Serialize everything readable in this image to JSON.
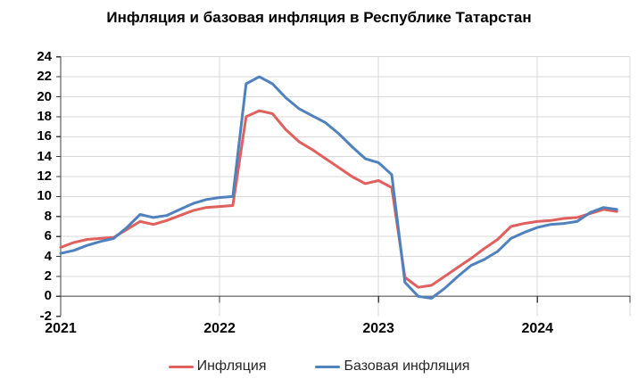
{
  "title": "Инфляция и базовая инфляция в Республике Татарстан",
  "colors": {
    "inflation": "#e0605d",
    "core_inflation": "#4f81bd",
    "gridline": "#d9d9d9",
    "zero_line": "#7f7f7f",
    "axis": "#3f3f3f",
    "text": "#000000"
  },
  "chart_data": {
    "type": "line",
    "title": "Инфляция и базовая инфляция в Республике Татарстан",
    "x_unit": "month",
    "x_start": "2021-01",
    "x_end": "2024-07",
    "xlabel": "",
    "ylabel": "",
    "ylim": [
      -2,
      24
    ],
    "y_tick_step": 2,
    "y_ticks": [
      24,
      22,
      20,
      18,
      16,
      14,
      12,
      10,
      8,
      6,
      4,
      2,
      0,
      -2
    ],
    "x_year_ticks": [
      {
        "label": "2021",
        "month_index": 0
      },
      {
        "label": "2022",
        "month_index": 12
      },
      {
        "label": "2023",
        "month_index": 24
      },
      {
        "label": "2024",
        "month_index": 36
      }
    ],
    "grid": "horizontal every 2 units (zero line darker) + vertical at year boundaries",
    "legend_position": "bottom",
    "series": [
      {
        "name": "Инфляция",
        "color": "#e0605d",
        "values": [
          4.9,
          5.4,
          5.7,
          5.8,
          5.9,
          6.7,
          7.5,
          7.2,
          7.6,
          8.1,
          8.6,
          8.9,
          9.0,
          9.1,
          18.0,
          18.6,
          18.3,
          16.7,
          15.5,
          14.7,
          13.8,
          12.9,
          12.0,
          11.3,
          11.6,
          10.9,
          1.9,
          0.9,
          1.1,
          2.0,
          2.9,
          3.8,
          4.8,
          5.7,
          7.0,
          7.3,
          7.5,
          7.6,
          7.8,
          7.9,
          8.3,
          8.7,
          8.5
        ]
      },
      {
        "name": "Базовая инфляция",
        "color": "#4f81bd",
        "values": [
          4.3,
          4.6,
          5.1,
          5.5,
          5.8,
          6.9,
          8.2,
          7.9,
          8.1,
          8.7,
          9.3,
          9.7,
          9.9,
          10.0,
          21.3,
          22.0,
          21.3,
          19.9,
          18.8,
          18.1,
          17.4,
          16.3,
          15.0,
          13.8,
          13.4,
          12.2,
          1.4,
          0.0,
          -0.2,
          0.8,
          2.0,
          3.1,
          3.7,
          4.5,
          5.8,
          6.4,
          6.9,
          7.2,
          7.3,
          7.5,
          8.4,
          8.9,
          8.7
        ]
      }
    ]
  },
  "legend": {
    "items": [
      {
        "label": "Инфляция"
      },
      {
        "label": "Базовая инфляция"
      }
    ]
  }
}
